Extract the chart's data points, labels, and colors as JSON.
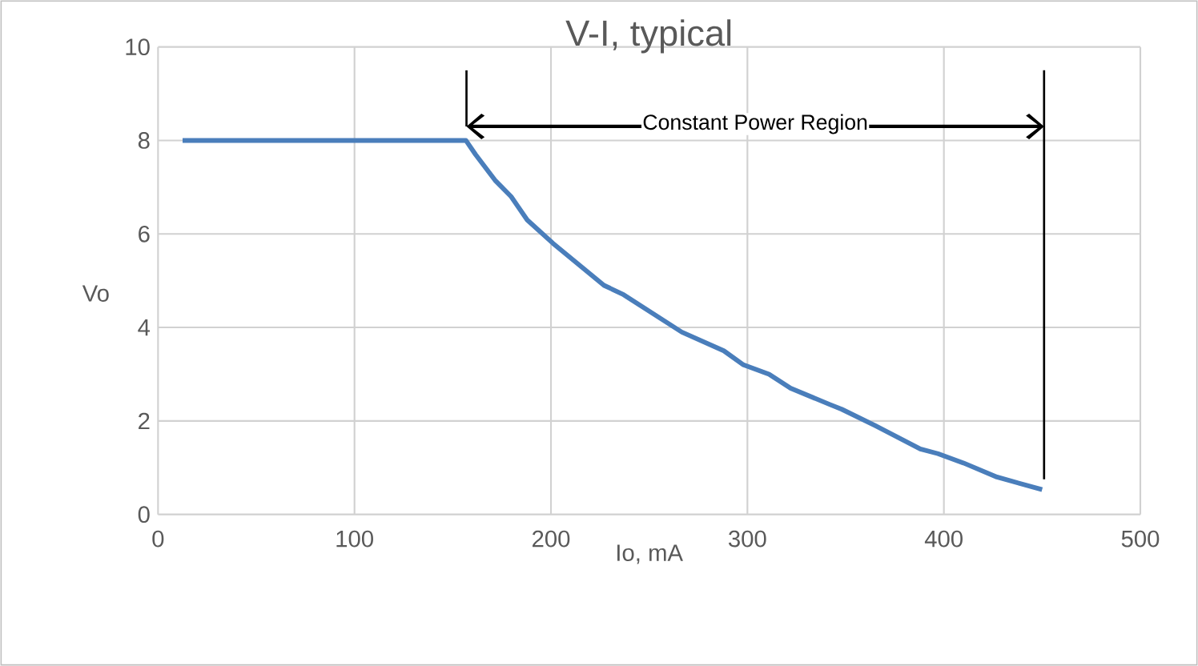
{
  "chart_data": {
    "type": "line",
    "title": "V-I, typical",
    "xlabel": "Io, mA",
    "ylabel": "Vo",
    "x": [
      12.5,
      156.7,
      161.6,
      171.5,
      179.7,
      187.9,
      201,
      227,
      237,
      266.6,
      288,
      298,
      311,
      322,
      342,
      348,
      365,
      388,
      397,
      410,
      427,
      450
    ],
    "series": [
      {
        "color": "#4a7ebb",
        "values": [
          8,
          8,
          7.7,
          7.15,
          6.8,
          6.3,
          5.8,
          4.9,
          4.7,
          3.9,
          3.5,
          3.2,
          3.0,
          2.7,
          2.35,
          2.25,
          1.9,
          1.4,
          1.3,
          1.1,
          0.8,
          0.53
        ]
      }
    ],
    "xlim": [
      0,
      500
    ],
    "ylim": [
      0,
      10
    ],
    "xticks": [
      0,
      100,
      200,
      300,
      400,
      500
    ],
    "yticks": [
      0,
      2,
      4,
      6,
      8,
      10
    ],
    "grid": true,
    "marker": "none",
    "line_style": "solid",
    "annotations": [
      "Constant Power Region"
    ],
    "ref_lines": [
      {
        "axis": "x",
        "value": 451,
        "color": "#000000"
      }
    ]
  }
}
